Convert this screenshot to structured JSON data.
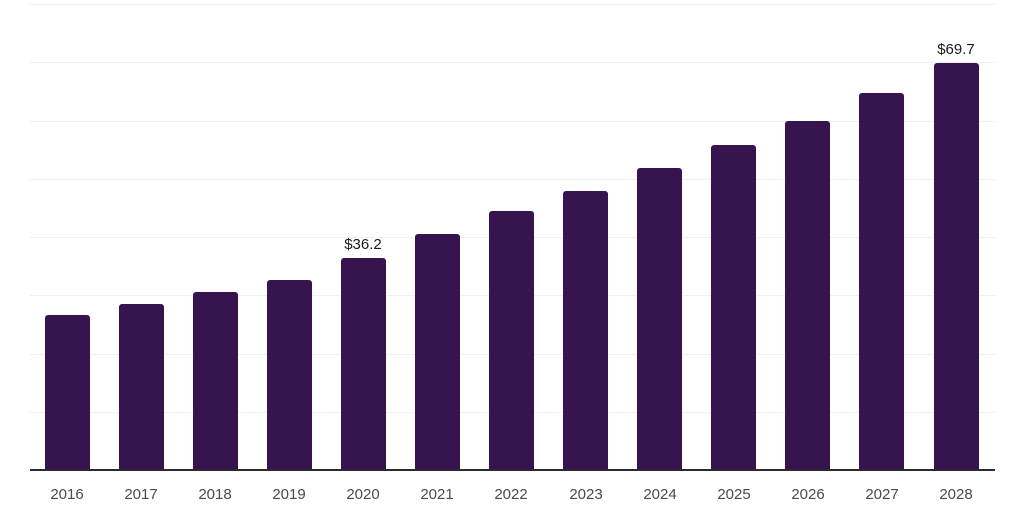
{
  "chart_data": {
    "type": "bar",
    "title": "",
    "xlabel": "",
    "ylabel": "",
    "categories": [
      "2016",
      "2017",
      "2018",
      "2019",
      "2020",
      "2021",
      "2022",
      "2023",
      "2024",
      "2025",
      "2026",
      "2027",
      "2028"
    ],
    "values": [
      26.5,
      28.4,
      30.4,
      32.5,
      36.2,
      40.4,
      44.3,
      47.8,
      51.6,
      55.6,
      59.8,
      64.6,
      69.7
    ],
    "value_prefix": "$",
    "annotations": [
      {
        "category": "2020",
        "text": "$36.2"
      },
      {
        "category": "2028",
        "text": "$69.7"
      }
    ],
    "ylim": [
      0,
      80
    ],
    "grid_step": 10,
    "grid": true,
    "legend": "none",
    "y_axis_tick_labels_visible": false,
    "colors": {
      "bar": "#371450",
      "grid": "#f0f0f0",
      "axis": "#2b2b2b",
      "tick_label": "#4a4a4a",
      "annotation": "#1a1a1a",
      "background": "#ffffff"
    }
  }
}
